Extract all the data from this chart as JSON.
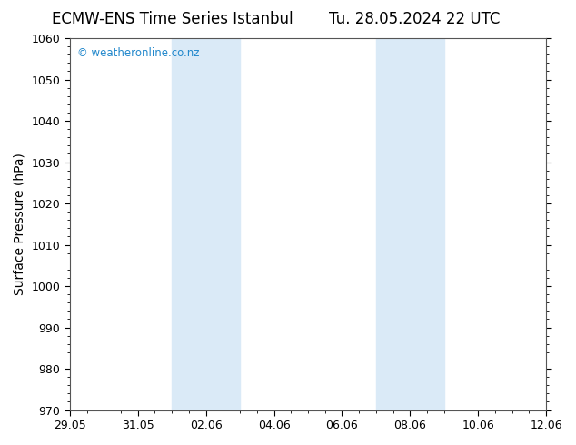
{
  "title_left": "ECMW-ENS Time Series Istanbul",
  "title_right": "Tu. 28.05.2024 22 UTC",
  "ylabel": "Surface Pressure (hPa)",
  "ylim": [
    970,
    1060
  ],
  "yticks": [
    970,
    980,
    990,
    1000,
    1010,
    1020,
    1030,
    1040,
    1050,
    1060
  ],
  "xtick_labels": [
    "29.05",
    "31.05",
    "02.06",
    "04.06",
    "06.06",
    "08.06",
    "10.06",
    "12.06"
  ],
  "x_ticks_pos": [
    0,
    2,
    4,
    6,
    8,
    10,
    12,
    14
  ],
  "x_start": 0,
  "x_end": 14,
  "shade_regions": [
    {
      "x_start": 3.0,
      "x_end": 5.0
    },
    {
      "x_start": 9.0,
      "x_end": 11.0
    }
  ],
  "shade_color": "#daeaf7",
  "background_color": "#ffffff",
  "watermark_text": "© weatheronline.co.nz",
  "watermark_color": "#2288cc",
  "title_fontsize": 12,
  "axis_label_fontsize": 10,
  "tick_fontsize": 9,
  "grid_color": "#aaaaaa",
  "spine_color": "#555555"
}
